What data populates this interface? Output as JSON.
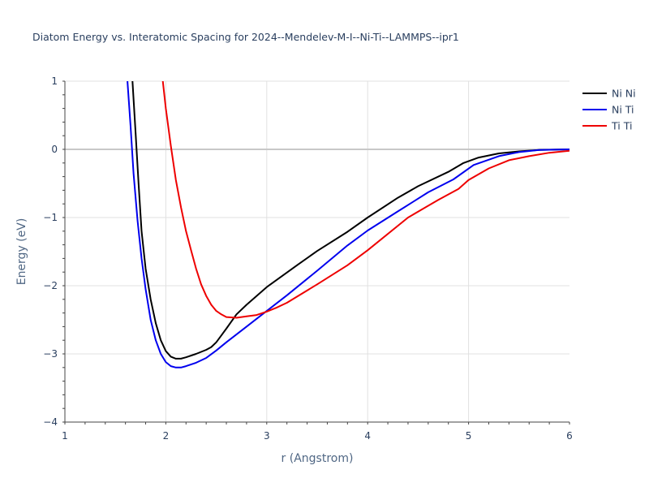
{
  "chart_data": {
    "type": "line",
    "title": "Diatom Energy vs. Interatomic Spacing for 2024--Mendelev-M-I--Ni-Ti--LAMMPS--ipr1",
    "xlabel": "r (Angstrom)",
    "ylabel": "Energy (eV)",
    "xlim": [
      1,
      6
    ],
    "ylim": [
      -4,
      1
    ],
    "xticks": [
      "1",
      "2",
      "3",
      "4",
      "5",
      "6"
    ],
    "yticks": [
      "−4",
      "−3",
      "−2",
      "−1",
      "0",
      "1"
    ],
    "grid": true,
    "legend_position": "top-right",
    "series": [
      {
        "name": "Ni Ni",
        "color": "#000000",
        "x": [
          1.67,
          1.7,
          1.73,
          1.76,
          1.8,
          1.85,
          1.9,
          1.95,
          2.0,
          2.05,
          2.1,
          2.15,
          2.2,
          2.3,
          2.4,
          2.45,
          2.5,
          2.55,
          2.6,
          2.7,
          2.8,
          3.0,
          3.3,
          3.5,
          3.8,
          4.0,
          4.3,
          4.5,
          4.8,
          4.95,
          5.1,
          5.3,
          5.5,
          5.7,
          6.0
        ],
        "y": [
          1.0,
          0.25,
          -0.5,
          -1.2,
          -1.75,
          -2.2,
          -2.55,
          -2.8,
          -2.96,
          -3.04,
          -3.07,
          -3.07,
          -3.05,
          -3.0,
          -2.94,
          -2.9,
          -2.83,
          -2.73,
          -2.63,
          -2.42,
          -2.28,
          -2.02,
          -1.7,
          -1.49,
          -1.21,
          -1.0,
          -0.71,
          -0.54,
          -0.33,
          -0.2,
          -0.12,
          -0.06,
          -0.03,
          -0.01,
          0.0
        ]
      },
      {
        "name": "Ni Ti",
        "color": "#0000ee",
        "x": [
          1.62,
          1.65,
          1.68,
          1.72,
          1.76,
          1.8,
          1.85,
          1.9,
          1.95,
          2.0,
          2.05,
          2.1,
          2.15,
          2.2,
          2.3,
          2.4,
          2.5,
          2.6,
          2.8,
          3.0,
          3.2,
          3.5,
          3.8,
          4.0,
          4.3,
          4.6,
          4.85,
          5.05,
          5.3,
          5.5,
          5.7,
          6.0
        ],
        "y": [
          1.0,
          0.35,
          -0.35,
          -1.05,
          -1.6,
          -2.05,
          -2.5,
          -2.8,
          -3.0,
          -3.12,
          -3.18,
          -3.2,
          -3.2,
          -3.18,
          -3.13,
          -3.06,
          -2.95,
          -2.83,
          -2.6,
          -2.37,
          -2.14,
          -1.78,
          -1.41,
          -1.19,
          -0.91,
          -0.63,
          -0.44,
          -0.23,
          -0.1,
          -0.04,
          -0.01,
          0.0
        ]
      },
      {
        "name": "Ti Ti",
        "color": "#ee0000",
        "x": [
          1.97,
          2.0,
          2.05,
          2.1,
          2.15,
          2.2,
          2.25,
          2.3,
          2.35,
          2.4,
          2.45,
          2.5,
          2.55,
          2.6,
          2.7,
          2.8,
          2.9,
          3.0,
          3.1,
          3.2,
          3.5,
          3.8,
          4.0,
          4.4,
          4.7,
          4.9,
          5.0,
          5.2,
          5.4,
          5.6,
          5.8,
          6.0
        ],
        "y": [
          1.0,
          0.6,
          0.05,
          -0.45,
          -0.85,
          -1.2,
          -1.48,
          -1.75,
          -1.98,
          -2.15,
          -2.28,
          -2.37,
          -2.42,
          -2.46,
          -2.47,
          -2.45,
          -2.43,
          -2.38,
          -2.32,
          -2.25,
          -1.98,
          -1.7,
          -1.48,
          -1.0,
          -0.74,
          -0.58,
          -0.45,
          -0.28,
          -0.16,
          -0.1,
          -0.05,
          -0.02
        ]
      }
    ]
  }
}
